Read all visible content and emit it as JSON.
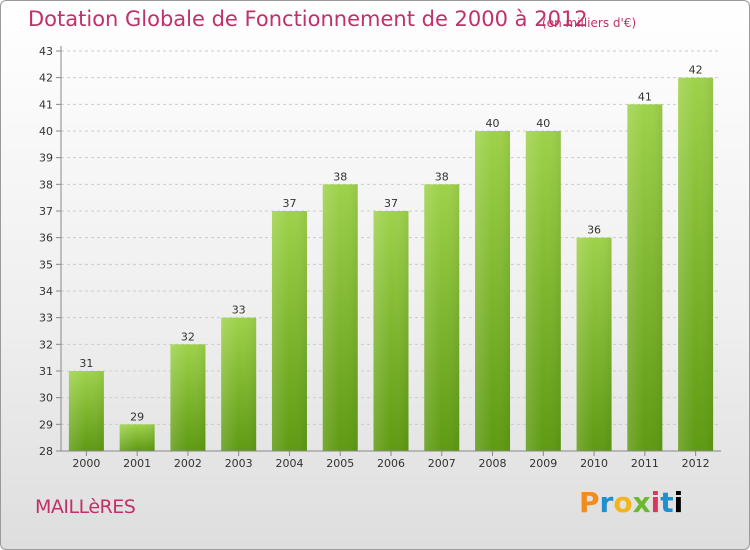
{
  "header": {
    "title": "Dotation Globale de Fonctionnement de 2000 à 2012",
    "unit": "(en milliers d'€)"
  },
  "footer": {
    "commune": "MAILLèRES",
    "logo_letters": [
      "P",
      "r",
      "o",
      "x",
      "i",
      "t",
      "i"
    ]
  },
  "colors": {
    "title": "#c0306a",
    "bar_light": "#9ed24a",
    "bar_dark": "#5e9a12",
    "axis": "#888888",
    "grid": "#cccccc"
  },
  "chart_data": {
    "type": "bar",
    "title": "Dotation Globale de Fonctionnement de 2000 à 2012",
    "subtitle": "(en milliers d'€)",
    "categories": [
      "2000",
      "2001",
      "2002",
      "2003",
      "2004",
      "2005",
      "2006",
      "2007",
      "2008",
      "2009",
      "2010",
      "2011",
      "2012"
    ],
    "values": [
      31,
      29,
      32,
      33,
      37,
      38,
      37,
      38,
      40,
      40,
      36,
      41,
      42
    ],
    "ylim": [
      28,
      43
    ],
    "yticks": [
      28,
      29,
      30,
      31,
      32,
      33,
      34,
      35,
      36,
      37,
      38,
      39,
      40,
      41,
      42,
      43
    ],
    "grid": true,
    "legend": "none"
  }
}
